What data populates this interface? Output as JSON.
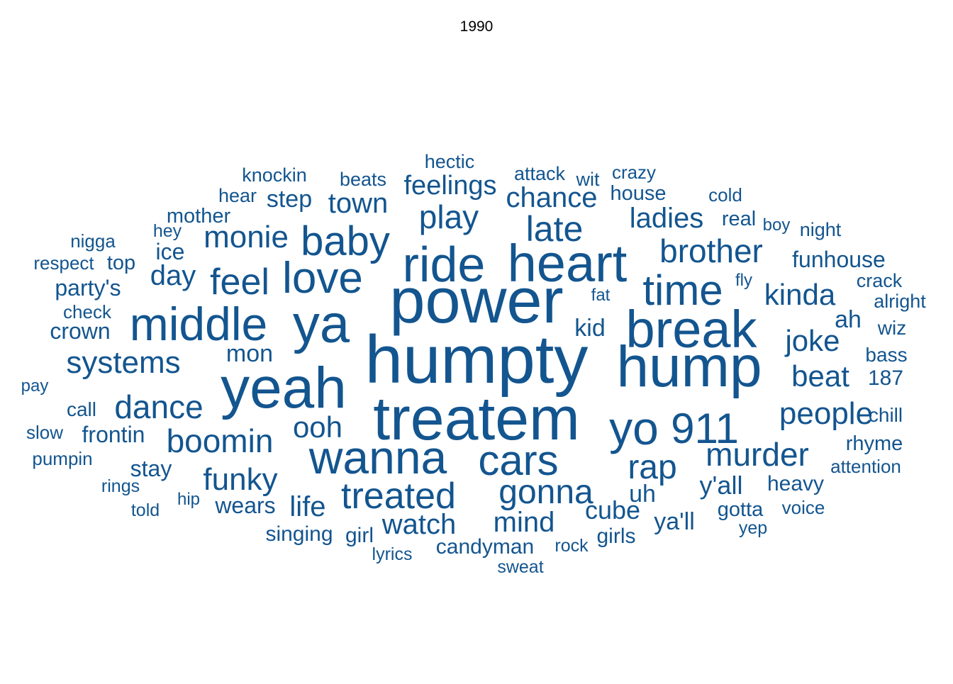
{
  "chart_data": {
    "type": "wordcloud",
    "title": "1990",
    "color": "#13558f",
    "words": [
      {
        "text": "humpty",
        "weight": 100
      },
      {
        "text": "treatem",
        "weight": 96
      },
      {
        "text": "power",
        "weight": 94
      },
      {
        "text": "yeah",
        "weight": 90
      },
      {
        "text": "hump",
        "weight": 90
      },
      {
        "text": "ya",
        "weight": 86
      },
      {
        "text": "heart",
        "weight": 80
      },
      {
        "text": "break",
        "weight": 80
      },
      {
        "text": "ride",
        "weight": 78
      },
      {
        "text": "middle",
        "weight": 75
      },
      {
        "text": "yo",
        "weight": 75
      },
      {
        "text": "wanna",
        "weight": 74
      },
      {
        "text": "911",
        "weight": 70
      },
      {
        "text": "cars",
        "weight": 70
      },
      {
        "text": "love",
        "weight": 68
      },
      {
        "text": "time",
        "weight": 66
      },
      {
        "text": "baby",
        "weight": 64
      },
      {
        "text": "feel",
        "weight": 60
      },
      {
        "text": "treated",
        "weight": 58
      },
      {
        "text": "boomin",
        "weight": 56
      },
      {
        "text": "late",
        "weight": 55
      },
      {
        "text": "brother",
        "weight": 54
      },
      {
        "text": "gonna",
        "weight": 54
      },
      {
        "text": "systems",
        "weight": 53
      },
      {
        "text": "dance",
        "weight": 53
      },
      {
        "text": "murder",
        "weight": 52
      },
      {
        "text": "play",
        "weight": 52
      },
      {
        "text": "rap",
        "weight": 52
      },
      {
        "text": "funky",
        "weight": 50
      },
      {
        "text": "people",
        "weight": 50
      },
      {
        "text": "monie",
        "weight": 48
      },
      {
        "text": "kinda",
        "weight": 46
      },
      {
        "text": "ooh",
        "weight": 46
      },
      {
        "text": "joke",
        "weight": 46
      },
      {
        "text": "beat",
        "weight": 44
      },
      {
        "text": "ladies",
        "weight": 44
      },
      {
        "text": "watch",
        "weight": 44
      },
      {
        "text": "mind",
        "weight": 43
      },
      {
        "text": "day",
        "weight": 42
      },
      {
        "text": "chance",
        "weight": 42
      },
      {
        "text": "town",
        "weight": 42
      },
      {
        "text": "feelings",
        "weight": 42
      },
      {
        "text": "life",
        "weight": 42
      },
      {
        "text": "cube",
        "weight": 38
      },
      {
        "text": "y'all",
        "weight": 38
      },
      {
        "text": "funhouse",
        "weight": 36
      },
      {
        "text": "step",
        "weight": 36
      },
      {
        "text": "mon",
        "weight": 36
      },
      {
        "text": "kid",
        "weight": 36
      },
      {
        "text": "ya'll",
        "weight": 35
      },
      {
        "text": "uh",
        "weight": 35
      },
      {
        "text": "ah",
        "weight": 35
      },
      {
        "text": "stay",
        "weight": 34
      },
      {
        "text": "wears",
        "weight": 34
      },
      {
        "text": "frontin",
        "weight": 33
      },
      {
        "text": "crown",
        "weight": 33
      },
      {
        "text": "party's",
        "weight": 33
      },
      {
        "text": "candyman",
        "weight": 32
      },
      {
        "text": "singing",
        "weight": 32
      },
      {
        "text": "girls",
        "weight": 32
      },
      {
        "text": "ice",
        "weight": 32
      },
      {
        "text": "187",
        "weight": 32
      },
      {
        "text": "mother",
        "weight": 31
      },
      {
        "text": "house",
        "weight": 31
      },
      {
        "text": "heavy",
        "weight": 31
      },
      {
        "text": "girl",
        "weight": 31
      },
      {
        "text": "rhyme",
        "weight": 30
      },
      {
        "text": "real",
        "weight": 30
      },
      {
        "text": "gotta",
        "weight": 30
      },
      {
        "text": "bass",
        "weight": 30
      },
      {
        "text": "top",
        "weight": 30
      },
      {
        "text": "wiz",
        "weight": 29
      },
      {
        "text": "hectic",
        "weight": 29
      },
      {
        "text": "chill",
        "weight": 29
      },
      {
        "text": "call",
        "weight": 29
      },
      {
        "text": "crack",
        "weight": 28
      },
      {
        "text": "knockin",
        "weight": 28
      },
      {
        "text": "attack",
        "weight": 28
      },
      {
        "text": "beats",
        "weight": 28
      },
      {
        "text": "nigga",
        "weight": 28
      },
      {
        "text": "respect",
        "weight": 28
      },
      {
        "text": "voice",
        "weight": 28
      },
      {
        "text": "alright",
        "weight": 28
      },
      {
        "text": "wit",
        "weight": 28
      },
      {
        "text": "night",
        "weight": 28
      },
      {
        "text": "hear",
        "weight": 28
      },
      {
        "text": "crazy",
        "weight": 27
      },
      {
        "text": "attention",
        "weight": 27
      },
      {
        "text": "cold",
        "weight": 27
      },
      {
        "text": "check",
        "weight": 27
      },
      {
        "text": "pumpin",
        "weight": 27
      },
      {
        "text": "sweat",
        "weight": 27
      },
      {
        "text": "rock",
        "weight": 27
      },
      {
        "text": "slow",
        "weight": 27
      },
      {
        "text": "yep",
        "weight": 27
      },
      {
        "text": "told",
        "weight": 27
      },
      {
        "text": "lyrics",
        "weight": 26
      },
      {
        "text": "hey",
        "weight": 26
      },
      {
        "text": "rings",
        "weight": 26
      },
      {
        "text": "boy",
        "weight": 26
      },
      {
        "text": "fly",
        "weight": 26
      },
      {
        "text": "fat",
        "weight": 26
      },
      {
        "text": "pay",
        "weight": 26
      },
      {
        "text": "hip",
        "weight": 26
      }
    ]
  }
}
